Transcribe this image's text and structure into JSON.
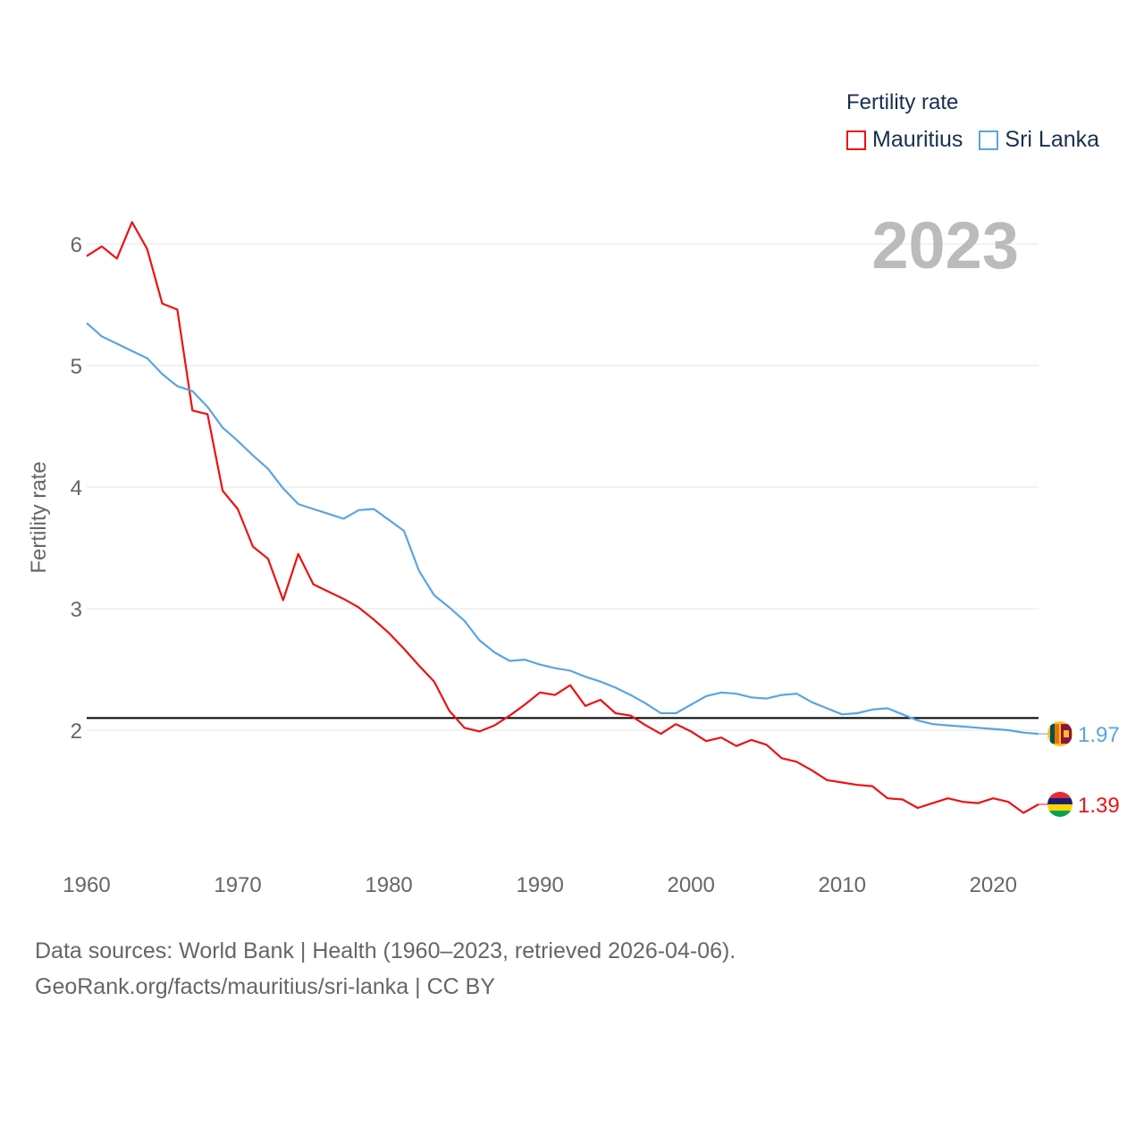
{
  "legend": {
    "title": "Fertility rate",
    "items": [
      {
        "name": "Mauritius",
        "color": "#ee1111"
      },
      {
        "name": "Sri Lanka",
        "color": "#5aa4e4"
      }
    ]
  },
  "footer": {
    "line1": "Data sources: World Bank | Health (1960–2023, retrieved 2026-04-06).",
    "line2": "GeoRank.org/facts/mauritius/sri-lanka | CC BY"
  },
  "chart_data": {
    "type": "line",
    "title": "Fertility rate",
    "year_label": "2023",
    "xlabel": "",
    "ylabel": "Fertility rate",
    "xlim": [
      1960,
      2023
    ],
    "ylim": [
      1.2,
      6.3
    ],
    "x_ticks": [
      1960,
      1970,
      1980,
      1990,
      2000,
      2010,
      2020
    ],
    "y_ticks": [
      2,
      3,
      4,
      5,
      6
    ],
    "reference_line": {
      "y": 2.1,
      "color": "#000000"
    },
    "x": [
      1960,
      1961,
      1962,
      1963,
      1964,
      1965,
      1966,
      1967,
      1968,
      1969,
      1970,
      1971,
      1972,
      1973,
      1974,
      1975,
      1976,
      1977,
      1978,
      1979,
      1980,
      1981,
      1982,
      1983,
      1984,
      1985,
      1986,
      1987,
      1988,
      1989,
      1990,
      1991,
      1992,
      1993,
      1994,
      1995,
      1996,
      1997,
      1998,
      1999,
      2000,
      2001,
      2002,
      2003,
      2004,
      2005,
      2006,
      2007,
      2008,
      2009,
      2010,
      2011,
      2012,
      2013,
      2014,
      2015,
      2016,
      2017,
      2018,
      2019,
      2020,
      2021,
      2022,
      2023
    ],
    "series": [
      {
        "name": "Mauritius",
        "color": "#ee1111",
        "end_label": "1.39",
        "values": [
          5.9,
          5.98,
          5.88,
          6.18,
          5.96,
          5.51,
          5.46,
          4.63,
          4.6,
          3.97,
          3.82,
          3.51,
          3.41,
          3.07,
          3.45,
          3.2,
          3.14,
          3.08,
          3.01,
          2.91,
          2.8,
          2.67,
          2.53,
          2.4,
          2.16,
          2.02,
          1.99,
          2.04,
          2.12,
          2.21,
          2.31,
          2.29,
          2.37,
          2.2,
          2.25,
          2.14,
          2.12,
          2.04,
          1.97,
          2.05,
          1.99,
          1.91,
          1.94,
          1.87,
          1.92,
          1.88,
          1.77,
          1.74,
          1.67,
          1.59,
          1.57,
          1.55,
          1.54,
          1.44,
          1.43,
          1.36,
          1.4,
          1.44,
          1.41,
          1.4,
          1.44,
          1.41,
          1.32,
          1.39
        ]
      },
      {
        "name": "Sri Lanka",
        "color": "#5aa4e4",
        "end_label": "1.97",
        "values": [
          5.35,
          5.24,
          5.18,
          5.12,
          5.06,
          4.93,
          4.83,
          4.79,
          4.66,
          4.49,
          4.38,
          4.26,
          4.15,
          3.99,
          3.86,
          3.82,
          3.78,
          3.74,
          3.81,
          3.82,
          3.73,
          3.64,
          3.31,
          3.11,
          3.01,
          2.9,
          2.74,
          2.64,
          2.57,
          2.58,
          2.54,
          2.51,
          2.49,
          2.44,
          2.4,
          2.35,
          2.29,
          2.22,
          2.14,
          2.14,
          2.21,
          2.28,
          2.31,
          2.3,
          2.27,
          2.26,
          2.29,
          2.3,
          2.23,
          2.18,
          2.13,
          2.14,
          2.17,
          2.18,
          2.13,
          2.08,
          2.05,
          2.04,
          2.03,
          2.02,
          2.01,
          2.0,
          1.98,
          1.97
        ]
      }
    ]
  }
}
